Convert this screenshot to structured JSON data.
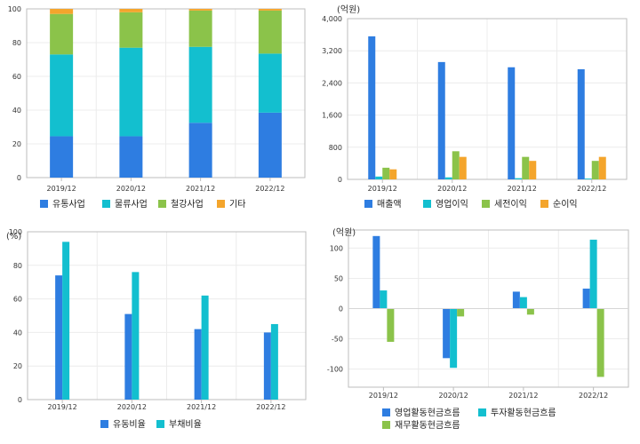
{
  "chart_data": [
    {
      "id": "business-mix",
      "type": "bar",
      "stacked": true,
      "title": "",
      "unit_label": "",
      "categories": [
        "2019/12",
        "2020/12",
        "2021/12",
        "2022/12"
      ],
      "ylim": [
        0,
        100
      ],
      "yticks": [
        0,
        20,
        40,
        60,
        80,
        100
      ],
      "grid": true,
      "legend_position": "bottom",
      "series": [
        {
          "name": "유통사업",
          "color": "#2e7de1",
          "values": [
            24.5,
            24.5,
            32.5,
            38.5
          ]
        },
        {
          "name": "물류사업",
          "color": "#13bfcf",
          "values": [
            48.5,
            52.5,
            45.0,
            35.0
          ]
        },
        {
          "name": "철강사업",
          "color": "#8bc34a",
          "values": [
            24.0,
            21.0,
            21.5,
            25.5
          ]
        },
        {
          "name": "기타",
          "color": "#f4a52c",
          "values": [
            3.0,
            2.0,
            1.0,
            1.0
          ]
        }
      ]
    },
    {
      "id": "income",
      "type": "bar",
      "title": "",
      "unit_label": "(억원)",
      "categories": [
        "2019/12",
        "2020/12",
        "2021/12",
        "2022/12"
      ],
      "ylim": [
        0,
        4000
      ],
      "yticks": [
        0,
        800,
        1600,
        2400,
        3200,
        4000
      ],
      "ytick_labels": [
        "0",
        "800",
        "1,600",
        "2,400",
        "3,200",
        "4,000"
      ],
      "grid": true,
      "legend_position": "bottom",
      "series": [
        {
          "name": "매출액",
          "color": "#2e7de1",
          "values": [
            3560,
            2920,
            2790,
            2740
          ]
        },
        {
          "name": "영업이익",
          "color": "#13bfcf",
          "values": [
            70,
            50,
            30,
            20
          ]
        },
        {
          "name": "세전이익",
          "color": "#8bc34a",
          "values": [
            290,
            700,
            560,
            460
          ]
        },
        {
          "name": "순이익",
          "color": "#f4a52c",
          "values": [
            250,
            560,
            460,
            560
          ]
        }
      ]
    },
    {
      "id": "ratios",
      "type": "bar",
      "title": "",
      "unit_label": "(%)",
      "categories": [
        "2019/12",
        "2020/12",
        "2021/12",
        "2022/12"
      ],
      "ylim": [
        0,
        100
      ],
      "yticks": [
        0,
        20,
        40,
        60,
        80,
        100
      ],
      "grid": true,
      "legend_position": "bottom",
      "series": [
        {
          "name": "유동비율",
          "color": "#2e7de1",
          "values": [
            74,
            51,
            42,
            40
          ]
        },
        {
          "name": "부채비율",
          "color": "#13bfcf",
          "values": [
            94,
            76,
            62,
            45
          ]
        }
      ]
    },
    {
      "id": "cashflow",
      "type": "bar",
      "title": "",
      "unit_label": "(억원)",
      "categories": [
        "2019/12",
        "2020/12",
        "2021/12",
        "2022/12"
      ],
      "ylim": [
        -130,
        130
      ],
      "yticks": [
        -100,
        -50,
        0,
        50,
        100
      ],
      "grid": true,
      "legend_position": "bottom",
      "series": [
        {
          "name": "영업활동현금흐름",
          "color": "#2e7de1",
          "values": [
            120,
            -82,
            28,
            33
          ]
        },
        {
          "name": "투자활동현금흐름",
          "color": "#13bfcf",
          "values": [
            30,
            -98,
            19,
            114
          ]
        },
        {
          "name": "재무활동현금흐름",
          "color": "#8bc34a",
          "values": [
            -55,
            -13,
            -10,
            -113
          ]
        }
      ]
    }
  ]
}
